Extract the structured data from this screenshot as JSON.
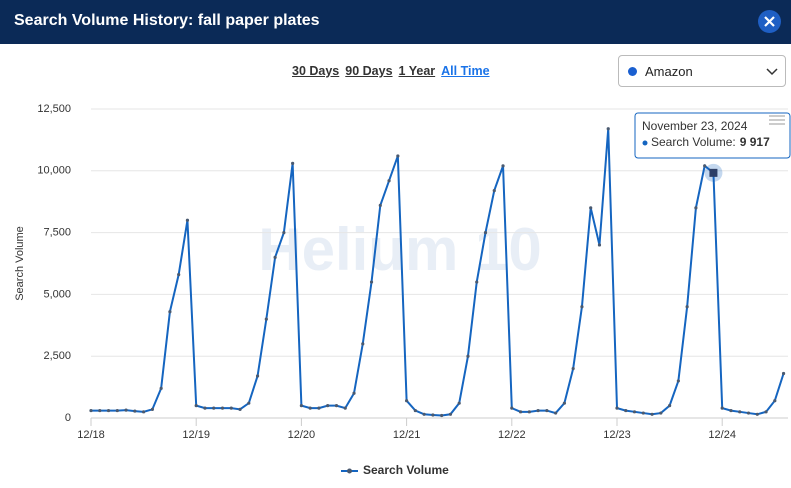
{
  "header": {
    "title": "Search Volume History: fall paper plates"
  },
  "ranges": [
    "30 Days",
    "90 Days",
    "1 Year",
    "All Time"
  ],
  "active_range": "All Time",
  "marketplace": "Amazon",
  "watermark": "Helium 10",
  "chart_data": {
    "type": "line",
    "y_label": "Search Volume",
    "categories": [
      "12/18",
      null,
      null,
      null,
      null,
      null,
      null,
      null,
      null,
      null,
      null,
      null,
      "12/19",
      null,
      null,
      null,
      null,
      null,
      null,
      null,
      null,
      null,
      null,
      null,
      "12/20",
      null,
      null,
      null,
      null,
      null,
      null,
      null,
      null,
      null,
      null,
      null,
      "12/21",
      null,
      null,
      null,
      null,
      null,
      null,
      null,
      null,
      null,
      null,
      null,
      "12/22",
      null,
      null,
      null,
      null,
      null,
      null,
      null,
      null,
      null,
      null,
      null,
      "12/23",
      null,
      null,
      null,
      null,
      null,
      null,
      null,
      null,
      null,
      null,
      null,
      "12/24",
      null,
      null,
      null,
      null,
      null,
      null,
      null
    ],
    "series": [
      {
        "name": "Search Volume",
        "color": "#1565c0",
        "marker_color": "#4a5a70",
        "values": [
          300,
          300,
          300,
          300,
          320,
          280,
          250,
          350,
          1200,
          4300,
          5800,
          8000,
          500,
          400,
          400,
          400,
          400,
          350,
          600,
          1700,
          4000,
          6500,
          7500,
          10300,
          500,
          400,
          400,
          500,
          500,
          400,
          1000,
          3000,
          5500,
          8600,
          9600,
          10600,
          700,
          300,
          150,
          120,
          100,
          150,
          600,
          2500,
          5500,
          7500,
          9200,
          10200,
          400,
          250,
          250,
          300,
          300,
          200,
          600,
          2000,
          4500,
          8500,
          7000,
          11700,
          400,
          300,
          250,
          200,
          150,
          200,
          500,
          1500,
          4500,
          8500,
          10200,
          9917,
          400,
          300,
          250,
          200,
          150,
          250,
          700,
          1800
        ]
      }
    ],
    "ylim": [
      0,
      12500
    ],
    "yticks": [
      0,
      {
        "value": 2500,
        "label": "2,500"
      },
      {
        "value": 5000,
        "label": "5,000"
      },
      {
        "value": 7500,
        "label": "7,500"
      },
      {
        "value": 10000,
        "label": "10,000"
      },
      {
        "value": 12500,
        "label": "12,500"
      }
    ],
    "grid": true,
    "tooltip": {
      "title": "November 23, 2024",
      "series_label": "Search Volume:",
      "value": 9917,
      "value_label": "9 917"
    }
  }
}
